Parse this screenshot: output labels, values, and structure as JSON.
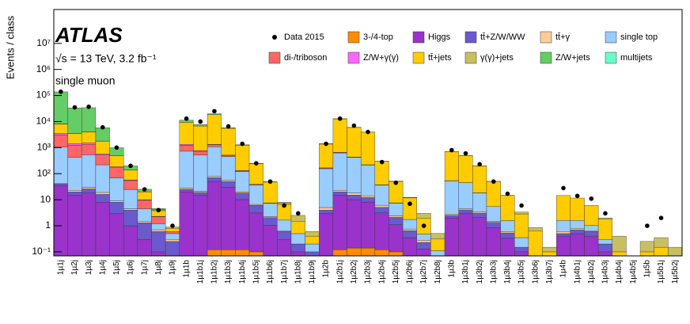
{
  "chart_data": {
    "type": "stacked_bar",
    "title": "ATLAS",
    "subtitle": "√s = 13 TeV, 3.2 fb⁻¹",
    "annotation": "single muon",
    "y_label": "Events / class",
    "log_y": true,
    "ylim": [
      0.07,
      200000000
    ],
    "yticks": [
      {
        "value": 0.1,
        "label": "10⁻¹"
      },
      1,
      10,
      {
        "value": 100,
        "label": "10²"
      },
      {
        "value": 1000,
        "label": "10³"
      },
      {
        "value": 10000,
        "label": "10⁴"
      },
      {
        "value": 100000,
        "label": "10⁵"
      },
      {
        "value": 1000000,
        "label": "10⁶"
      },
      {
        "value": 10000000,
        "label": "10⁷"
      }
    ],
    "categories": [
      "1µ1j",
      "1µ2j",
      "1µ3j",
      "1µ4j",
      "1µ5j",
      "1µ6j",
      "1µ7j",
      "1µ8j",
      "1µ9j",
      "1µ1b",
      "1µ1b1j",
      "1µ1b2j",
      "1µ1b3j",
      "1µ1b4j",
      "1µ1b5j",
      "1µ1b6j",
      "1µ1b7j",
      "1µ1b8j",
      "1µ1b9j",
      "1µ2b",
      "1µ2b1j",
      "1µ2b2j",
      "1µ2b3j",
      "1µ2b4j",
      "1µ2b5j",
      "1µ2b6j",
      "1µ2b7j",
      "1µ2b8j",
      "1µ3b",
      "1µ3b1j",
      "1µ3b2j",
      "1µ3b3j",
      "1µ3b4j",
      "1µ3b5j",
      "1µ3b6j",
      "1µ3b7j",
      "1µ4b",
      "1µ4b1j",
      "1µ4b2j",
      "1µ4b3j",
      "1µ4b4j",
      "1µ4b5j",
      "1µ5b",
      "1µ5b1j",
      "1µ5b2j"
    ],
    "data": {
      "name": "Data 2015",
      "color": "#000000",
      "values": [
        140000,
        35000,
        37000,
        6000,
        1000,
        200,
        25,
        4,
        1,
        13000,
        10000,
        25000,
        6500,
        1400,
        250,
        50,
        6,
        3,
        null,
        1400,
        13000,
        7000,
        4000,
        280,
        45,
        7,
        1,
        null,
        800,
        600,
        230,
        50,
        17,
        6,
        null,
        null,
        28,
        14,
        11,
        3,
        null,
        null,
        1,
        2,
        null
      ]
    },
    "series": [
      {
        "name": "3-/4-top",
        "color": "#ff8c00",
        "values": [
          0,
          0,
          0,
          0,
          0,
          0,
          0,
          0,
          0,
          0,
          0,
          0.12,
          0.12,
          0.12,
          0.1,
          0.05,
          0,
          0,
          0,
          0,
          0.12,
          0.14,
          0.14,
          0.12,
          0.1,
          0.05,
          0.03,
          0,
          0,
          0.05,
          0.05,
          0.05,
          0.03,
          0,
          0,
          0,
          0,
          0,
          0,
          0,
          0,
          0,
          0,
          0,
          0
        ]
      },
      {
        "name": "Higgs",
        "color": "#9933cc",
        "values": [
          35,
          15,
          18,
          8,
          3,
          1,
          0.3,
          0.1,
          0.05,
          20,
          15,
          50,
          30,
          10,
          3,
          1,
          0.3,
          0.1,
          0.05,
          3,
          15,
          10,
          8,
          3,
          1,
          0.3,
          0.1,
          0.03,
          2,
          3,
          2,
          0.8,
          0.3,
          0.1,
          0,
          0,
          0.4,
          0.5,
          0.4,
          0.1,
          0,
          0,
          0,
          0,
          0
        ]
      },
      {
        "name": "tt̄+Z/W/WW",
        "color": "#6a5acd",
        "values": [
          5,
          5,
          8,
          8,
          5,
          3,
          1,
          0.5,
          0.2,
          5,
          4,
          20,
          20,
          8,
          3,
          1,
          0.3,
          0.1,
          0.05,
          1,
          5,
          5,
          4,
          2,
          1,
          0.3,
          0.1,
          0.03,
          0.5,
          1,
          1,
          0.5,
          0.2,
          0.05,
          0,
          0,
          0.1,
          0.2,
          0.2,
          0.1,
          0,
          0,
          0,
          0,
          0
        ]
      },
      {
        "name": "tt̄+γ",
        "color": "#ffcc99",
        "values": [
          3,
          3,
          4,
          3,
          1,
          0.5,
          0.2,
          0.1,
          0.05,
          3,
          2,
          8,
          5,
          2,
          0.5,
          0.2,
          0.05,
          0,
          0,
          1,
          3,
          3,
          2,
          1,
          0.3,
          0.1,
          0.05,
          0,
          0.3,
          0.5,
          0.3,
          0.1,
          0.05,
          0,
          0,
          0,
          0.1,
          0.1,
          0.05,
          0,
          0,
          0,
          0,
          0,
          0
        ]
      },
      {
        "name": "single top",
        "color": "#99ccff",
        "values": [
          1000,
          400,
          500,
          200,
          60,
          20,
          3,
          0.5,
          0.2,
          700,
          500,
          1000,
          400,
          100,
          30,
          5,
          1,
          0.3,
          0.1,
          150,
          600,
          400,
          200,
          30,
          5,
          1,
          0.2,
          0.05,
          50,
          40,
          15,
          4,
          1,
          0.2,
          0.05,
          0,
          1,
          0.8,
          0.4,
          0.1,
          0,
          0,
          0,
          0,
          0
        ]
      },
      {
        "name": "di-/triboson",
        "color": "#ff6666",
        "values": [
          2000,
          800,
          800,
          300,
          100,
          30,
          5,
          1,
          0.1,
          500,
          200,
          200,
          50,
          10,
          2,
          0.3,
          0,
          0,
          0,
          10,
          30,
          15,
          5,
          1,
          0.2,
          0,
          0,
          0,
          1,
          0.5,
          0.2,
          0,
          0,
          0,
          0,
          0,
          0,
          0,
          0,
          0,
          0,
          0,
          0,
          0,
          0
        ]
      },
      {
        "name": "Z/W+γ(γ)",
        "color": "#ff66ff",
        "values": [
          500,
          200,
          200,
          50,
          15,
          3,
          0.5,
          0.1,
          0,
          100,
          50,
          50,
          10,
          2,
          0.5,
          0,
          0,
          0,
          0,
          2,
          5,
          3,
          1,
          0.2,
          0,
          0,
          0,
          0,
          0.2,
          0.1,
          0,
          0,
          0,
          0,
          0,
          0,
          0,
          0,
          0,
          0,
          0,
          0,
          0,
          0,
          0
        ]
      },
      {
        "name": "tt̄+jets",
        "color": "#ffcc00",
        "values": [
          4500,
          2000,
          2500,
          1200,
          300,
          80,
          10,
          1.5,
          0.2,
          8000,
          6000,
          17000,
          5000,
          1100,
          200,
          40,
          5,
          1,
          0.2,
          1200,
          12000,
          5500,
          3700,
          260,
          43,
          10,
          1.5,
          0.2,
          640,
          450,
          180,
          45,
          13,
          2.5,
          0.6,
          0.1,
          13,
          10,
          5,
          1.5,
          0.1,
          0,
          0.1,
          0.15,
          0.05
        ]
      },
      {
        "name": "γ(γ)+jets",
        "color": "#c8c060",
        "values": [
          100,
          50,
          50,
          20,
          5,
          1,
          0.2,
          0.3,
          0.1,
          0,
          0,
          0,
          0,
          0,
          0,
          0.5,
          1,
          1,
          0.2,
          0,
          0,
          0,
          0,
          0,
          0.2,
          0.5,
          1,
          0.2,
          0,
          0,
          0,
          0,
          0.2,
          0.5,
          0.2,
          0.05,
          0,
          0,
          0,
          0.2,
          0.3,
          0.05,
          0.15,
          0.2,
          0.1
        ]
      },
      {
        "name": "Z/W+jets",
        "color": "#66cc66",
        "values": [
          130000,
          30000,
          30000,
          4000,
          500,
          60,
          5,
          0.5,
          0,
          2000,
          1000,
          1500,
          300,
          50,
          8,
          1,
          0.2,
          0,
          0,
          50,
          200,
          80,
          30,
          3,
          0.5,
          0.1,
          0,
          0,
          5,
          3,
          1,
          0.2,
          0,
          0,
          0,
          0,
          0,
          0,
          0,
          0,
          0,
          0,
          0,
          0,
          0
        ]
      },
      {
        "name": "multijets",
        "color": "#66ffcc",
        "values": [
          0,
          0,
          0,
          0,
          0,
          0,
          0,
          0,
          0,
          0,
          0,
          0,
          0,
          0,
          0,
          0,
          0,
          0,
          0,
          0,
          0,
          0,
          0,
          0,
          0,
          0,
          0,
          0,
          0,
          0,
          0,
          0,
          0,
          0,
          0,
          0,
          0,
          0,
          0,
          0,
          0,
          0,
          0,
          0,
          0
        ]
      }
    ]
  }
}
